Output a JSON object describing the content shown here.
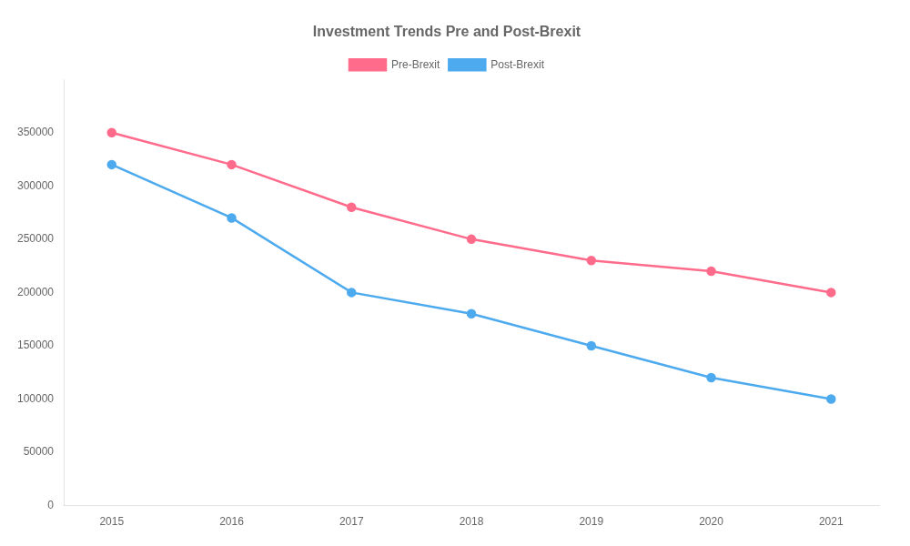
{
  "chart_data": {
    "type": "line",
    "title": "Investment Trends Pre and Post-Brexit",
    "x": [
      2015,
      2016,
      2017,
      2018,
      2019,
      2020,
      2021
    ],
    "xlim": [
      2014.6,
      2021.4
    ],
    "xticks": [
      2015,
      2016,
      2017,
      2018,
      2019,
      2020,
      2021
    ],
    "ylim": [
      0,
      400000
    ],
    "yticks": [
      0,
      50000,
      100000,
      150000,
      200000,
      250000,
      300000,
      350000
    ],
    "series": [
      {
        "name": "Pre-Brexit",
        "color": "#FF6B8A",
        "marker": "circle",
        "values": [
          350000,
          320000,
          280000,
          250000,
          230000,
          220000,
          200000
        ]
      },
      {
        "name": "Post-Brexit",
        "color": "#4DAAEE",
        "marker": "circle",
        "values": [
          320000,
          270000,
          200000,
          180000,
          150000,
          120000,
          100000
        ]
      }
    ],
    "grid": false,
    "legend": "top"
  }
}
